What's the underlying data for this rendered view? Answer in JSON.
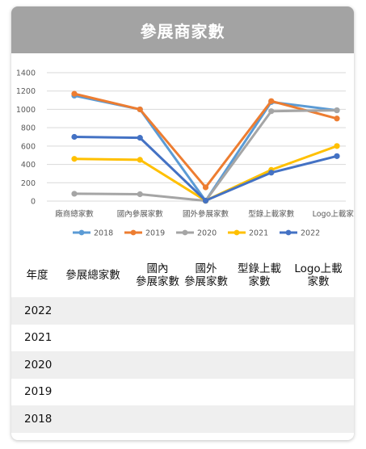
{
  "header": {
    "title": "參展商家數"
  },
  "chart_data": {
    "type": "line",
    "categories": [
      "廠商總家數",
      "國內參展家數",
      "國外參展家數",
      "型錄上載家數",
      "Logo上載家數"
    ],
    "y_tick_labels": [
      "0",
      "200",
      "400",
      "600",
      "800",
      "1000",
      "1200",
      "1400"
    ],
    "ylim": [
      0,
      1400
    ],
    "grid": true,
    "legend_position": "bottom",
    "series": [
      {
        "name": "2018",
        "color": "#5b9bd5",
        "values": [
          1150,
          1000,
          3,
          1080,
          990
        ]
      },
      {
        "name": "2019",
        "color": "#ed7d31",
        "values": [
          1170,
          1000,
          150,
          1090,
          900
        ]
      },
      {
        "name": "2020",
        "color": "#a5a5a5",
        "values": [
          80,
          75,
          3,
          980,
          990
        ]
      },
      {
        "name": "2021",
        "color": "#ffc000",
        "values": [
          460,
          450,
          5,
          340,
          600
        ]
      },
      {
        "name": "2022",
        "color": "#4472c4",
        "values": [
          700,
          690,
          5,
          310,
          490
        ]
      }
    ]
  },
  "table": {
    "headers": [
      "年度",
      "參展總家數",
      "國內\n參展家數",
      "國外\n參展家數",
      "型錄上載\n家數",
      "Logo上載\n家數"
    ],
    "rows": [
      "2022",
      "2021",
      "2020",
      "2019",
      "2018"
    ]
  }
}
